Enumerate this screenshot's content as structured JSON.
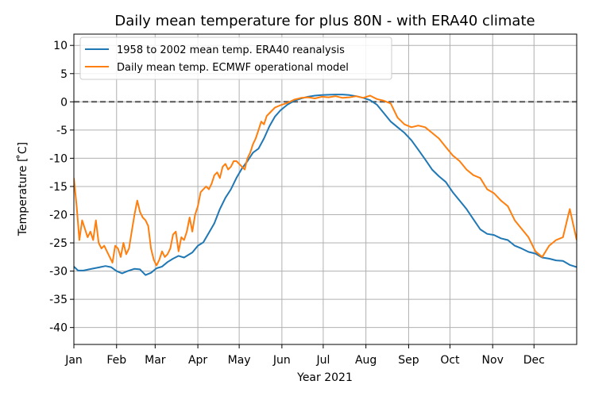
{
  "chart_data": {
    "type": "line",
    "title": "Daily mean temperature for plus 80N - with ERA40 climate",
    "xlabel": "Year 2021",
    "ylabel": "Temperature [ ̊C]",
    "xlim": [
      0,
      365
    ],
    "ylim": [
      -43,
      12
    ],
    "yticks": [
      10,
      5,
      0,
      -5,
      -10,
      -15,
      -20,
      -25,
      -30,
      -35,
      -40
    ],
    "month_labels": [
      "Jan",
      "Feb",
      "Mar",
      "Apr",
      "May",
      "Jun",
      "Jul",
      "Aug",
      "Sep",
      "Oct",
      "Nov",
      "Dec"
    ],
    "month_start_days": [
      0,
      31,
      59,
      90,
      120,
      151,
      181,
      212,
      243,
      273,
      304,
      334
    ],
    "grid": true,
    "legend_position": "top-left",
    "reference_line": {
      "y": 0,
      "style": "dashed",
      "color": "#555555"
    },
    "series": [
      {
        "name": "1958 to 2002 mean temp. ERA40 reanalysis",
        "color": "#1f77b4",
        "x": [
          0,
          3,
          7,
          11,
          15,
          19,
          23,
          27,
          31,
          35,
          39,
          44,
          48,
          52,
          56,
          60,
          64,
          68,
          72,
          76,
          80,
          86,
          90,
          94,
          98,
          102,
          106,
          110,
          114,
          118,
          122,
          126,
          130,
          134,
          138,
          142,
          146,
          150,
          155,
          160,
          165,
          170,
          175,
          180,
          185,
          190,
          195,
          200,
          205,
          210,
          215,
          220,
          225,
          230,
          235,
          240,
          245,
          250,
          255,
          260,
          265,
          270,
          275,
          280,
          285,
          290,
          295,
          300,
          305,
          310,
          315,
          320,
          325,
          330,
          335,
          340,
          345,
          350,
          355,
          360,
          365
        ],
        "values": [
          -29.2,
          -29.9,
          -29.9,
          -29.7,
          -29.5,
          -29.3,
          -29.1,
          -29.3,
          -30.0,
          -30.4,
          -30.0,
          -29.6,
          -29.7,
          -30.7,
          -30.3,
          -29.5,
          -29.2,
          -28.4,
          -27.8,
          -27.3,
          -27.6,
          -26.7,
          -25.5,
          -24.9,
          -23.2,
          -21.5,
          -19.0,
          -17.0,
          -15.5,
          -13.5,
          -11.8,
          -10.5,
          -9.0,
          -8.3,
          -6.5,
          -4.3,
          -2.6,
          -1.5,
          -0.5,
          0.2,
          0.6,
          0.9,
          1.1,
          1.2,
          1.25,
          1.3,
          1.3,
          1.2,
          1.0,
          0.7,
          0.3,
          -0.5,
          -2.0,
          -3.5,
          -4.5,
          -5.5,
          -6.8,
          -8.5,
          -10.2,
          -12.0,
          -13.2,
          -14.2,
          -16.0,
          -17.5,
          -19.0,
          -20.8,
          -22.6,
          -23.4,
          -23.6,
          -24.2,
          -24.5,
          -25.5,
          -26.0,
          -26.6,
          -26.9,
          -27.6,
          -27.8,
          -28.1,
          -28.2,
          -28.9,
          -29.3
        ]
      },
      {
        "name": "Daily mean temp. ECMWF operational model",
        "color": "#ff7f0e",
        "x": [
          0,
          2,
          4,
          6,
          8,
          10,
          12,
          14,
          16,
          18,
          20,
          22,
          24,
          26,
          28,
          30,
          32,
          34,
          36,
          38,
          40,
          42,
          44,
          46,
          48,
          50,
          52,
          54,
          56,
          58,
          60,
          62,
          64,
          66,
          68,
          70,
          72,
          74,
          76,
          78,
          80,
          82,
          84,
          86,
          88,
          90,
          92,
          94,
          96,
          98,
          100,
          102,
          104,
          106,
          108,
          110,
          112,
          114,
          116,
          118,
          120,
          122,
          124,
          126,
          128,
          130,
          132,
          134,
          136,
          138,
          140,
          142,
          144,
          146,
          148,
          150,
          155,
          160,
          165,
          170,
          175,
          180,
          185,
          190,
          195,
          200,
          205,
          210,
          215,
          220,
          225,
          230,
          235,
          240,
          245,
          250,
          255,
          260,
          265,
          270,
          275,
          280,
          285,
          290,
          295,
          300,
          305,
          310,
          315,
          320,
          325,
          330,
          335,
          340,
          345,
          350,
          355,
          360,
          365
        ],
        "values": [
          -13.5,
          -18.5,
          -24.5,
          -21.0,
          -22.5,
          -24.0,
          -23.0,
          -24.5,
          -21.0,
          -25.0,
          -26.0,
          -25.5,
          -26.5,
          -27.5,
          -28.5,
          -25.5,
          -26.0,
          -27.5,
          -25.0,
          -27.0,
          -26.0,
          -23.0,
          -20.0,
          -17.5,
          -19.5,
          -20.5,
          -21.0,
          -22.0,
          -26.0,
          -28.0,
          -29.0,
          -28.0,
          -26.5,
          -27.5,
          -27.0,
          -26.0,
          -23.5,
          -23.0,
          -26.5,
          -24.0,
          -24.5,
          -23.0,
          -20.5,
          -23.0,
          -20.0,
          -18.5,
          -16.0,
          -15.5,
          -15.0,
          -15.5,
          -14.5,
          -13.0,
          -12.5,
          -13.5,
          -11.5,
          -11.0,
          -12.0,
          -11.5,
          -10.5,
          -10.5,
          -11.0,
          -11.5,
          -12.0,
          -10.0,
          -9.0,
          -7.5,
          -6.5,
          -5.0,
          -3.5,
          -4.0,
          -2.5,
          -2.0,
          -1.5,
          -1.0,
          -0.8,
          -0.6,
          -0.2,
          0.4,
          0.7,
          0.8,
          0.6,
          0.9,
          0.8,
          1.0,
          0.7,
          0.8,
          1.0,
          0.7,
          1.1,
          0.5,
          0.2,
          -0.3,
          -2.8,
          -4.0,
          -4.5,
          -4.2,
          -4.5,
          -5.5,
          -6.5,
          -8.0,
          -9.5,
          -10.5,
          -12.0,
          -13.0,
          -13.5,
          -15.5,
          -16.2,
          -17.5,
          -18.5,
          -21.0,
          -22.5,
          -24.0,
          -26.5,
          -27.5,
          -25.5,
          -24.5,
          -24.0,
          -19.0,
          -24.5
        ]
      }
    ]
  }
}
